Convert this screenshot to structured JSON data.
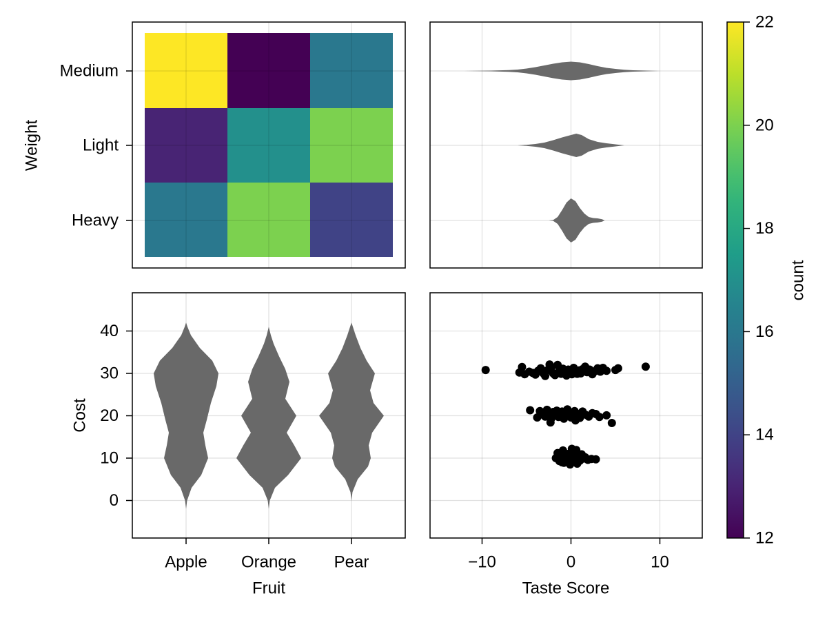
{
  "chart_data": [
    {
      "type": "heatmap",
      "panel": "top-left",
      "x_categories": [
        "Apple",
        "Orange",
        "Pear"
      ],
      "y_categories": [
        "Heavy",
        "Light",
        "Medium"
      ],
      "ylabel": "Weight",
      "grid": true,
      "values": [
        {
          "x": "Apple",
          "y": "Medium",
          "count": 22
        },
        {
          "x": "Orange",
          "y": "Medium",
          "count": 12
        },
        {
          "x": "Pear",
          "y": "Medium",
          "count": 16
        },
        {
          "x": "Apple",
          "y": "Light",
          "count": 13
        },
        {
          "x": "Orange",
          "y": "Light",
          "count": 17
        },
        {
          "x": "Pear",
          "y": "Light",
          "count": 20
        },
        {
          "x": "Apple",
          "y": "Heavy",
          "count": 16
        },
        {
          "x": "Orange",
          "y": "Heavy",
          "count": 20
        },
        {
          "x": "Pear",
          "y": "Heavy",
          "count": 14
        }
      ],
      "colorbar": {
        "label": "count",
        "colormap": "viridis",
        "range": [
          12,
          22
        ],
        "ticks": [
          "12",
          "14",
          "16",
          "18",
          "20",
          "22"
        ]
      }
    },
    {
      "type": "violin",
      "panel": "top-right",
      "orientation": "horizontal",
      "categories": [
        "Heavy",
        "Light",
        "Medium"
      ],
      "x_axis": "Taste Score",
      "xlim": [
        -16,
        15
      ],
      "grid": true,
      "series": [
        {
          "category": "Heavy",
          "min": -2.5,
          "max": 3.8
        },
        {
          "category": "Light",
          "min": -6,
          "max": 6
        },
        {
          "category": "Medium",
          "min": -12,
          "max": 10
        }
      ]
    },
    {
      "type": "violin",
      "panel": "bottom-left",
      "orientation": "vertical",
      "categories": [
        "Apple",
        "Orange",
        "Pear"
      ],
      "xlabel": "Fruit",
      "ylabel": "Cost",
      "ylim": [
        -9,
        48
      ],
      "yticks": [
        "0",
        "10",
        "20",
        "30",
        "40"
      ],
      "grid": true,
      "series": [
        {
          "category": "Apple",
          "min": -2,
          "max": 42,
          "modes": [
            10,
            30
          ]
        },
        {
          "category": "Orange",
          "min": -2,
          "max": 41,
          "modes": [
            10,
            20,
            30
          ]
        },
        {
          "category": "Pear",
          "min": 0,
          "max": 42,
          "modes": [
            10,
            20,
            30
          ]
        }
      ]
    },
    {
      "type": "scatter",
      "panel": "bottom-right",
      "xlabel": "Taste Score",
      "xlim": [
        -16,
        15
      ],
      "ylim": [
        -9,
        48
      ],
      "xticks": [
        "−10",
        "0",
        "10"
      ],
      "grid": true,
      "series": [
        {
          "group": "cost≈30",
          "points": [
            [
              -9.6,
              30.8
            ],
            [
              -5.8,
              30.2
            ],
            [
              -5.5,
              31.5
            ],
            [
              -5.2,
              29.8
            ],
            [
              -4.7,
              30.4
            ],
            [
              -4.3,
              30.1
            ],
            [
              -4.0,
              29.7
            ],
            [
              -3.7,
              30.6
            ],
            [
              -3.4,
              31.2
            ],
            [
              -3.1,
              30.0
            ],
            [
              -2.9,
              29.4
            ],
            [
              -2.6,
              30.8
            ],
            [
              -2.4,
              32.1
            ],
            [
              -2.2,
              31.4
            ],
            [
              -2.0,
              30.0
            ],
            [
              -1.8,
              29.6
            ],
            [
              -1.5,
              32.0
            ],
            [
              -1.3,
              30.6
            ],
            [
              -1.1,
              29.9
            ],
            [
              -0.9,
              31.1
            ],
            [
              -0.7,
              30.4
            ],
            [
              -0.5,
              29.5
            ],
            [
              -0.3,
              30.9
            ],
            [
              -0.1,
              30.2
            ],
            [
              0.1,
              29.8
            ],
            [
              0.3,
              31.3
            ],
            [
              0.5,
              30.5
            ],
            [
              0.7,
              29.9
            ],
            [
              0.9,
              30.7
            ],
            [
              1.1,
              30.0
            ],
            [
              1.3,
              31.0
            ],
            [
              1.6,
              31.6
            ],
            [
              1.8,
              30.3
            ],
            [
              2.1,
              30.9
            ],
            [
              2.4,
              29.8
            ],
            [
              2.7,
              30.5
            ],
            [
              3.0,
              31.2
            ],
            [
              3.3,
              30.4
            ],
            [
              3.6,
              31.3
            ],
            [
              4.0,
              30.6
            ],
            [
              5.0,
              30.8
            ],
            [
              5.3,
              31.2
            ],
            [
              8.4,
              31.6
            ]
          ]
        },
        {
          "group": "cost≈20",
          "points": [
            [
              -4.6,
              21.3
            ],
            [
              -3.8,
              19.6
            ],
            [
              -3.5,
              21.1
            ],
            [
              -3.2,
              20.3
            ],
            [
              -2.9,
              19.8
            ],
            [
              -2.7,
              21.4
            ],
            [
              -2.4,
              20.6
            ],
            [
              -2.2,
              19.4
            ],
            [
              -2.0,
              20.9
            ],
            [
              -1.8,
              20.1
            ],
            [
              -1.6,
              21.2
            ],
            [
              -1.4,
              19.7
            ],
            [
              -1.2,
              20.5
            ],
            [
              -1.0,
              21.0
            ],
            [
              -0.8,
              19.3
            ],
            [
              -0.6,
              20.8
            ],
            [
              -0.4,
              21.5
            ],
            [
              -0.2,
              20.2
            ],
            [
              0.0,
              19.6
            ],
            [
              0.2,
              20.7
            ],
            [
              0.4,
              21.1
            ],
            [
              0.6,
              19.9
            ],
            [
              0.8,
              20.4
            ],
            [
              1.0,
              19.5
            ],
            [
              1.3,
              21.0
            ],
            [
              1.6,
              20.3
            ],
            [
              2.0,
              19.8
            ],
            [
              2.4,
              20.6
            ],
            [
              2.8,
              20.4
            ],
            [
              3.2,
              19.7
            ],
            [
              4.0,
              20.1
            ],
            [
              4.6,
              18.3
            ],
            [
              -2.3,
              18.4
            ],
            [
              0.5,
              18.9
            ]
          ]
        },
        {
          "group": "cost≈10",
          "points": [
            [
              -1.7,
              10.0
            ],
            [
              -1.5,
              11.2
            ],
            [
              -1.3,
              9.3
            ],
            [
              -1.1,
              10.6
            ],
            [
              -0.9,
              11.8
            ],
            [
              -0.8,
              8.9
            ],
            [
              -0.6,
              10.3
            ],
            [
              -0.4,
              9.6
            ],
            [
              -0.3,
              11.0
            ],
            [
              -0.1,
              8.5
            ],
            [
              0.0,
              10.1
            ],
            [
              0.1,
              12.2
            ],
            [
              0.2,
              9.2
            ],
            [
              0.3,
              10.8
            ],
            [
              0.4,
              11.5
            ],
            [
              0.5,
              9.8
            ],
            [
              0.7,
              8.7
            ],
            [
              0.8,
              10.4
            ],
            [
              1.0,
              9.4
            ],
            [
              1.2,
              10.9
            ],
            [
              1.4,
              9.9
            ],
            [
              1.6,
              10.2
            ],
            [
              1.9,
              9.6
            ],
            [
              2.3,
              9.8
            ],
            [
              2.8,
              9.7
            ],
            [
              -1.0,
              9.0
            ],
            [
              0.6,
              11.9
            ]
          ]
        }
      ]
    }
  ]
}
